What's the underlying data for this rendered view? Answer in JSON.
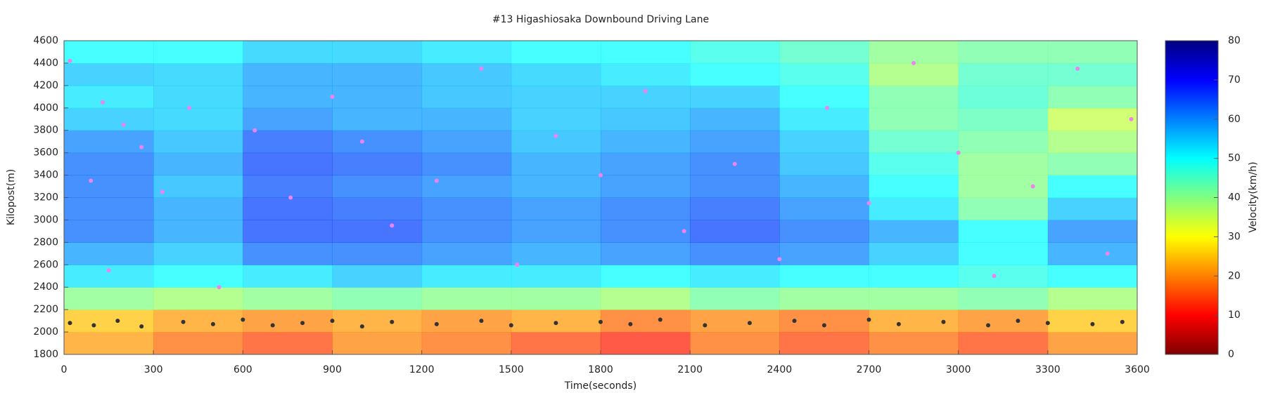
{
  "chart_data": {
    "type": "heatmap",
    "title": "#13 Higashiosaka Downbound Driving Lane",
    "xlabel": "Time(seconds)",
    "ylabel": "Kilopost(m)",
    "zlabel": "Velocity(km/h)",
    "xlim": [
      0,
      3600
    ],
    "xticks": [
      0,
      300,
      600,
      900,
      1200,
      1500,
      1800,
      2100,
      2400,
      2700,
      3000,
      3300,
      3600
    ],
    "ylim": [
      1800,
      4600
    ],
    "yticks": [
      1800,
      2000,
      2200,
      2400,
      2600,
      2800,
      3000,
      3200,
      3400,
      3600,
      3800,
      4000,
      4200,
      4400,
      4600
    ],
    "zlim": [
      0,
      80
    ],
    "zticks": [
      0,
      10,
      20,
      30,
      40,
      50,
      60,
      70,
      80
    ],
    "colormap": [
      "#7f0000",
      "#ff0000",
      "#ff8000",
      "#ffff00",
      "#80ff80",
      "#00ffff",
      "#0080ff",
      "#0000ff",
      "#00007f"
    ],
    "xbins": [
      0,
      300,
      600,
      900,
      1200,
      1500,
      1800,
      2100,
      2400,
      2700,
      3000,
      3300,
      3600
    ],
    "ybins": [
      1800,
      2000,
      2200,
      2400,
      2600,
      2800,
      3000,
      3200,
      3400,
      3600,
      3800,
      4000,
      4200,
      4400,
      4600
    ],
    "z": [
      [
        22,
        18,
        15,
        20,
        18,
        15,
        12,
        18,
        15,
        18,
        15,
        20
      ],
      [
        25,
        22,
        20,
        22,
        20,
        22,
        18,
        20,
        18,
        22,
        20,
        25
      ],
      [
        40,
        38,
        40,
        42,
        40,
        40,
        38,
        42,
        40,
        40,
        42,
        38
      ],
      [
        52,
        50,
        52,
        55,
        52,
        52,
        50,
        52,
        50,
        50,
        48,
        50
      ],
      [
        58,
        55,
        62,
        62,
        60,
        58,
        60,
        62,
        60,
        55,
        50,
        58
      ],
      [
        62,
        58,
        65,
        65,
        62,
        60,
        62,
        65,
        62,
        58,
        50,
        60
      ],
      [
        62,
        58,
        65,
        64,
        62,
        60,
        62,
        64,
        60,
        52,
        42,
        55
      ],
      [
        62,
        56,
        64,
        62,
        60,
        58,
        60,
        62,
        58,
        50,
        40,
        50
      ],
      [
        62,
        58,
        65,
        64,
        62,
        58,
        60,
        62,
        56,
        48,
        40,
        42
      ],
      [
        60,
        56,
        64,
        62,
        60,
        56,
        58,
        60,
        55,
        45,
        42,
        38
      ],
      [
        55,
        54,
        60,
        58,
        58,
        55,
        56,
        58,
        52,
        42,
        44,
        35
      ],
      [
        52,
        54,
        58,
        58,
        56,
        55,
        55,
        55,
        50,
        42,
        46,
        42
      ],
      [
        55,
        54,
        58,
        58,
        56,
        54,
        52,
        50,
        48,
        38,
        45,
        45
      ],
      [
        50,
        50,
        54,
        54,
        52,
        50,
        50,
        48,
        45,
        40,
        42,
        42
      ]
    ],
    "series": [
      {
        "color": "#ee82ee",
        "x": [
          20,
          130,
          200,
          260,
          90,
          150,
          330,
          420,
          520,
          640,
          760,
          900,
          1000,
          1100,
          1250,
          1400,
          1520,
          1650,
          1800,
          1950,
          2080,
          2250,
          2400,
          2560,
          2700,
          2850,
          3000,
          3120,
          3250,
          3400,
          3500,
          3580
        ],
        "y": [
          4420,
          4050,
          3850,
          3650,
          3350,
          2550,
          3250,
          4000,
          2400,
          3800,
          3200,
          4100,
          3700,
          2950,
          3350,
          4350,
          2600,
          3750,
          3400,
          4150,
          2900,
          3500,
          2650,
          4000,
          3150,
          4400,
          3600,
          2500,
          3300,
          4350,
          2700,
          3900
        ]
      },
      {
        "color": "#333333",
        "x": [
          20,
          100,
          180,
          260,
          400,
          500,
          600,
          700,
          800,
          900,
          1000,
          1100,
          1250,
          1400,
          1500,
          1650,
          1800,
          1900,
          2000,
          2150,
          2300,
          2450,
          2550,
          2700,
          2800,
          2950,
          3100,
          3200,
          3300,
          3450,
          3550
        ],
        "y": [
          2080,
          2060,
          2100,
          2050,
          2090,
          2070,
          2110,
          2060,
          2080,
          2100,
          2050,
          2090,
          2070,
          2100,
          2060,
          2080,
          2090,
          2070,
          2110,
          2060,
          2080,
          2100,
          2060,
          2110,
          2070,
          2090,
          2060,
          2100,
          2080,
          2070,
          2090
        ]
      }
    ]
  }
}
